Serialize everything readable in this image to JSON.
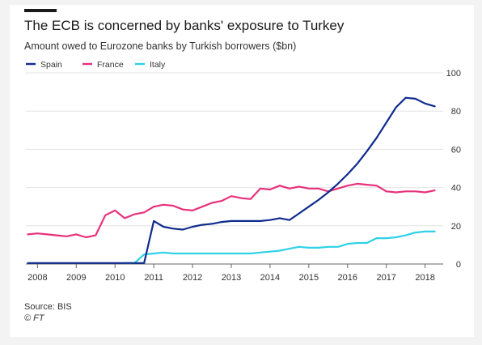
{
  "header": {
    "title": "The ECB is concerned by banks' exposure to Turkey",
    "subtitle": "Amount owed to Eurozone banks by Turkish borrowers ($bn)"
  },
  "footer": {
    "source": "Source: BIS",
    "credit": "© FT"
  },
  "colors": {
    "spain": "#0f2b8c",
    "france": "#e8317c",
    "italy": "#2fd1e6",
    "grid": "#e4e4e4",
    "axis": "#666666"
  },
  "chart_data": {
    "type": "line",
    "title": "The ECB is concerned by banks' exposure to Turkey",
    "subtitle": "Amount owed to Eurozone banks by Turkish borrowers ($bn)",
    "xlabel": "",
    "ylabel": "",
    "xlim": [
      2007.7,
      2018.3
    ],
    "ylim": [
      0,
      100
    ],
    "yticks": [
      0,
      20,
      40,
      60,
      80,
      100
    ],
    "xticks": [
      "2008",
      "2009",
      "2010",
      "2011",
      "2012",
      "2013",
      "2014",
      "2015",
      "2016",
      "2017",
      "2018"
    ],
    "grid": "horizontal",
    "legend": "top-left",
    "series": [
      {
        "name": "Spain",
        "color": "#0f2b8c",
        "x": [
          2007.75,
          2008.0,
          2008.5,
          2009.0,
          2009.5,
          2010.0,
          2010.5,
          2010.75,
          2011.0,
          2011.25,
          2011.5,
          2011.75,
          2012.0,
          2012.25,
          2012.5,
          2012.75,
          2013.0,
          2013.25,
          2013.5,
          2013.75,
          2014.0,
          2014.25,
          2014.5,
          2014.75,
          2015.0,
          2015.25,
          2015.5,
          2015.75,
          2016.0,
          2016.25,
          2016.5,
          2016.75,
          2017.0,
          2017.25,
          2017.5,
          2017.75,
          2018.0,
          2018.25
        ],
        "y": [
          0.5,
          0.5,
          0.5,
          0.5,
          0.5,
          0.5,
          0.5,
          0.5,
          22.5,
          19.5,
          18.5,
          18.0,
          19.5,
          20.5,
          21.0,
          22.0,
          22.5,
          22.5,
          22.5,
          22.5,
          23.0,
          24.0,
          23.0,
          26.5,
          30.0,
          33.5,
          37.5,
          42.0,
          47.0,
          52.5,
          59.0,
          66.0,
          74.0,
          82.0,
          87.0,
          86.5,
          84.0,
          82.5
        ]
      },
      {
        "name": "France",
        "color": "#e8317c",
        "x": [
          2007.75,
          2008.0,
          2008.25,
          2008.5,
          2008.75,
          2009.0,
          2009.25,
          2009.5,
          2009.75,
          2010.0,
          2010.25,
          2010.5,
          2010.75,
          2011.0,
          2011.25,
          2011.5,
          2011.75,
          2012.0,
          2012.25,
          2012.5,
          2012.75,
          2013.0,
          2013.25,
          2013.5,
          2013.75,
          2014.0,
          2014.25,
          2014.5,
          2014.75,
          2015.0,
          2015.25,
          2015.5,
          2015.75,
          2016.0,
          2016.25,
          2016.5,
          2016.75,
          2017.0,
          2017.25,
          2017.5,
          2017.75,
          2018.0,
          2018.25
        ],
        "y": [
          15.5,
          16.0,
          15.5,
          15.0,
          14.5,
          15.5,
          14.0,
          15.0,
          25.5,
          28.0,
          24.0,
          26.0,
          27.0,
          30.0,
          31.0,
          30.5,
          28.5,
          28.0,
          30.0,
          32.0,
          33.0,
          35.5,
          34.5,
          34.0,
          39.5,
          39.0,
          41.0,
          39.5,
          40.5,
          39.5,
          39.5,
          38.0,
          39.5,
          41.0,
          42.0,
          41.5,
          41.0,
          38.0,
          37.5,
          38.0,
          38.0,
          37.5,
          38.5
        ]
      },
      {
        "name": "Italy",
        "color": "#2fd1e6",
        "x": [
          2010.25,
          2010.5,
          2010.75,
          2011.0,
          2011.25,
          2011.5,
          2012.0,
          2012.5,
          2013.0,
          2013.25,
          2013.5,
          2013.75,
          2014.0,
          2014.25,
          2014.5,
          2014.75,
          2015.0,
          2015.25,
          2015.5,
          2015.75,
          2016.0,
          2016.25,
          2016.5,
          2016.75,
          2017.0,
          2017.25,
          2017.5,
          2017.75,
          2018.0,
          2018.25
        ],
        "y": [
          0.5,
          0.5,
          5.0,
          5.5,
          6.0,
          5.5,
          5.5,
          5.5,
          5.5,
          5.5,
          5.5,
          6.0,
          6.5,
          7.0,
          8.0,
          9.0,
          8.5,
          8.5,
          9.0,
          9.0,
          10.5,
          11.0,
          11.0,
          13.5,
          13.5,
          14.0,
          15.0,
          16.5,
          17.0,
          17.0
        ]
      }
    ]
  }
}
